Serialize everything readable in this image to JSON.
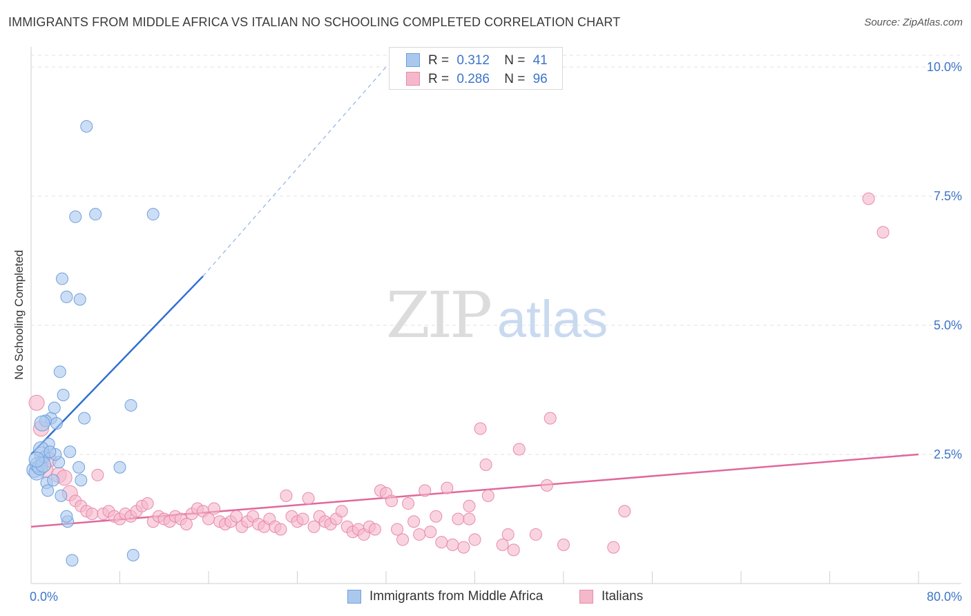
{
  "title": "IMMIGRANTS FROM MIDDLE AFRICA VS ITALIAN NO SCHOOLING COMPLETED CORRELATION CHART",
  "source": "Source: ZipAtlas.com",
  "watermark": {
    "zip": "ZIP",
    "atlas": "atlas"
  },
  "colors": {
    "blue_fill": "#aac8ee",
    "blue_stroke": "#6f9fdc",
    "blue_line": "#2f6fd0",
    "pink_fill": "#f5b8cb",
    "pink_stroke": "#e88aa8",
    "pink_line": "#e0689a",
    "tick_text": "#3d74c9",
    "grid": "#e2e2e2"
  },
  "legend": {
    "rows": [
      {
        "r_label": "R =",
        "r_value": "0.312",
        "n_label": "N =",
        "n_value": "41"
      },
      {
        "r_label": "R =",
        "r_value": "0.286",
        "n_label": "N =",
        "n_value": "96"
      }
    ]
  },
  "chart_data": {
    "type": "scatter",
    "title": "IMMIGRANTS FROM MIDDLE AFRICA VS ITALIAN NO SCHOOLING COMPLETED CORRELATION CHART",
    "xlabel": "",
    "ylabel": "No Schooling Completed",
    "xlim": [
      0,
      80
    ],
    "ylim": [
      0,
      10
    ],
    "x_tick_labels": [
      {
        "value": 0,
        "label": "0.0%"
      },
      {
        "value": 80,
        "label": "80.0%"
      }
    ],
    "y_tick_labels": [
      {
        "value": 2.5,
        "label": "2.5%"
      },
      {
        "value": 5.0,
        "label": "5.0%"
      },
      {
        "value": 7.5,
        "label": "7.5%"
      },
      {
        "value": 10.0,
        "label": "10.0%"
      }
    ],
    "grid": true,
    "legend_position": "top-center",
    "series": [
      {
        "name": "Immigrants from Middle Africa",
        "color": "#aac8ee",
        "R": 0.312,
        "N": 41,
        "trend": {
          "x1": 0,
          "y1": 2.5,
          "x2": 15.5,
          "y2": 5.95,
          "dash_to_x": 32,
          "dash_to_y": 10.0
        },
        "points": [
          [
            0.3,
            2.2
          ],
          [
            0.5,
            2.15
          ],
          [
            0.6,
            2.3
          ],
          [
            0.8,
            2.25
          ],
          [
            1.0,
            2.5
          ],
          [
            1.2,
            2.45
          ],
          [
            1.4,
            1.95
          ],
          [
            1.5,
            1.8
          ],
          [
            1.6,
            2.7
          ],
          [
            1.8,
            3.2
          ],
          [
            2.0,
            2.0
          ],
          [
            2.1,
            3.4
          ],
          [
            2.3,
            3.1
          ],
          [
            2.5,
            2.35
          ],
          [
            2.6,
            4.1
          ],
          [
            2.8,
            5.9
          ],
          [
            2.9,
            3.65
          ],
          [
            3.2,
            5.55
          ],
          [
            3.5,
            2.55
          ],
          [
            3.7,
            0.45
          ],
          [
            4.0,
            7.1
          ],
          [
            4.3,
            2.25
          ],
          [
            4.5,
            2.0
          ],
          [
            4.8,
            3.2
          ],
          [
            5.0,
            8.85
          ],
          [
            5.8,
            7.15
          ],
          [
            8.0,
            2.25
          ],
          [
            9.0,
            3.45
          ],
          [
            9.2,
            0.55
          ],
          [
            11.0,
            7.15
          ],
          [
            1.3,
            3.15
          ],
          [
            1.0,
            3.1
          ],
          [
            4.4,
            5.5
          ],
          [
            2.2,
            2.5
          ],
          [
            1.1,
            2.3
          ],
          [
            0.9,
            2.6
          ],
          [
            3.3,
            1.2
          ],
          [
            3.2,
            1.3
          ],
          [
            0.5,
            2.4
          ],
          [
            1.7,
            2.55
          ],
          [
            2.7,
            1.7
          ]
        ]
      },
      {
        "name": "Italians",
        "color": "#f5b8cb",
        "R": 0.286,
        "N": 96,
        "trend": {
          "x1": 0,
          "y1": 1.1,
          "x2": 80,
          "y2": 2.5
        },
        "points": [
          [
            0.5,
            3.5
          ],
          [
            0.9,
            3.0
          ],
          [
            1.3,
            2.2
          ],
          [
            1.6,
            2.4
          ],
          [
            2.5,
            2.1
          ],
          [
            3.0,
            2.05
          ],
          [
            3.5,
            1.75
          ],
          [
            4.0,
            1.6
          ],
          [
            4.5,
            1.5
          ],
          [
            5.0,
            1.4
          ],
          [
            5.5,
            1.35
          ],
          [
            6.0,
            2.1
          ],
          [
            6.5,
            1.35
          ],
          [
            7.0,
            1.4
          ],
          [
            7.5,
            1.3
          ],
          [
            8.0,
            1.25
          ],
          [
            8.5,
            1.35
          ],
          [
            9.0,
            1.3
          ],
          [
            9.5,
            1.4
          ],
          [
            10.0,
            1.5
          ],
          [
            10.5,
            1.55
          ],
          [
            11.0,
            1.2
          ],
          [
            11.5,
            1.3
          ],
          [
            12.0,
            1.25
          ],
          [
            12.5,
            1.2
          ],
          [
            13.0,
            1.3
          ],
          [
            13.5,
            1.25
          ],
          [
            14.0,
            1.15
          ],
          [
            14.5,
            1.35
          ],
          [
            15.0,
            1.45
          ],
          [
            15.5,
            1.4
          ],
          [
            16.0,
            1.25
          ],
          [
            16.5,
            1.45
          ],
          [
            17.0,
            1.2
          ],
          [
            17.5,
            1.15
          ],
          [
            18.0,
            1.2
          ],
          [
            18.5,
            1.3
          ],
          [
            19.0,
            1.1
          ],
          [
            19.5,
            1.2
          ],
          [
            20.0,
            1.3
          ],
          [
            20.5,
            1.15
          ],
          [
            21.0,
            1.1
          ],
          [
            21.5,
            1.25
          ],
          [
            22.0,
            1.1
          ],
          [
            22.5,
            1.05
          ],
          [
            23.0,
            1.7
          ],
          [
            23.5,
            1.3
          ],
          [
            24.0,
            1.2
          ],
          [
            24.5,
            1.25
          ],
          [
            25.0,
            1.65
          ],
          [
            25.5,
            1.1
          ],
          [
            26.0,
            1.3
          ],
          [
            26.5,
            1.2
          ],
          [
            27.0,
            1.15
          ],
          [
            27.5,
            1.25
          ],
          [
            28.0,
            1.4
          ],
          [
            28.5,
            1.1
          ],
          [
            29.0,
            1.0
          ],
          [
            29.5,
            1.05
          ],
          [
            30.0,
            0.95
          ],
          [
            30.5,
            1.1
          ],
          [
            31.0,
            1.05
          ],
          [
            31.5,
            1.8
          ],
          [
            32.0,
            1.75
          ],
          [
            32.5,
            1.6
          ],
          [
            33.0,
            1.05
          ],
          [
            33.5,
            0.85
          ],
          [
            34.0,
            1.55
          ],
          [
            34.5,
            1.2
          ],
          [
            35.0,
            0.95
          ],
          [
            35.5,
            1.8
          ],
          [
            36.0,
            1.0
          ],
          [
            36.5,
            1.3
          ],
          [
            37.0,
            0.8
          ],
          [
            37.5,
            1.85
          ],
          [
            38.0,
            0.75
          ],
          [
            38.5,
            1.25
          ],
          [
            39.0,
            0.7
          ],
          [
            39.5,
            1.5
          ],
          [
            40.0,
            0.85
          ],
          [
            40.5,
            3.0
          ],
          [
            41.0,
            2.3
          ],
          [
            42.5,
            0.75
          ],
          [
            43.0,
            0.95
          ],
          [
            43.5,
            0.65
          ],
          [
            44.0,
            2.6
          ],
          [
            45.5,
            0.95
          ],
          [
            46.5,
            1.9
          ],
          [
            46.8,
            3.2
          ],
          [
            48.0,
            0.75
          ],
          [
            52.5,
            0.7
          ],
          [
            53.5,
            1.4
          ],
          [
            41.2,
            1.7
          ],
          [
            39.5,
            1.25
          ],
          [
            75.5,
            7.45
          ],
          [
            76.8,
            6.8
          ]
        ]
      }
    ]
  },
  "bottom_legend": [
    "Immigrants from Middle Africa",
    "Italians"
  ]
}
